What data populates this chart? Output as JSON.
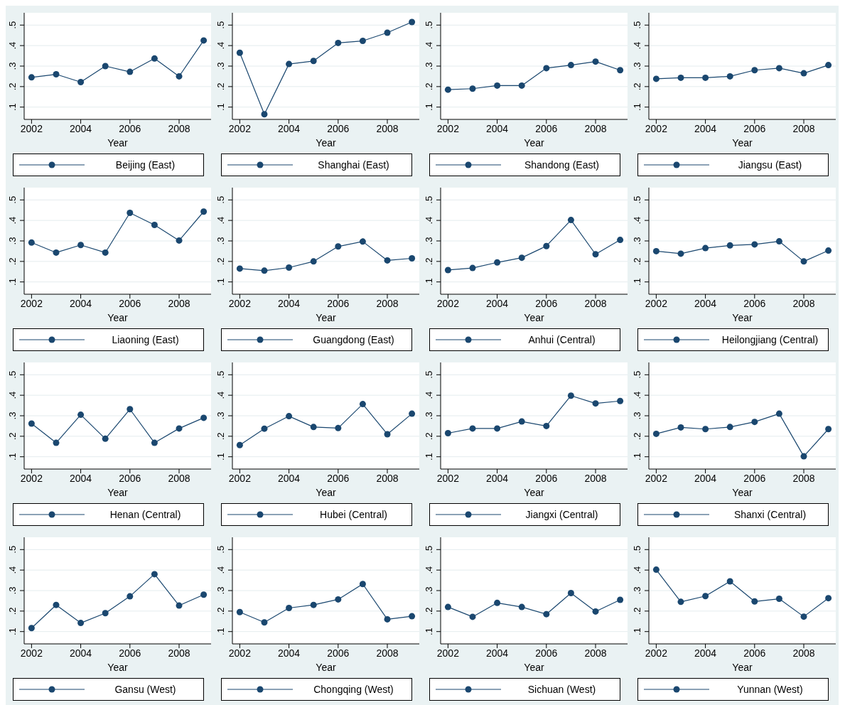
{
  "chart_data": [
    {
      "type": "line",
      "xlabel": "Year",
      "x": [
        2002,
        2003,
        2004,
        2005,
        2006,
        2007,
        2008,
        2009
      ],
      "xlim": [
        2001.7,
        2009.3
      ],
      "xticks": [
        2002,
        2004,
        2006,
        2008
      ],
      "ylim": [
        0.04,
        0.56
      ],
      "yticks": [
        {
          "value": 0.1,
          "label": ".1"
        },
        {
          "value": 0.2,
          "label": ".2"
        },
        {
          "value": 0.3,
          "label": ".3"
        },
        {
          "value": 0.4,
          "label": ".4"
        },
        {
          "value": 0.5,
          "label": ".5"
        }
      ],
      "grid": "y",
      "legend": "bottom",
      "marker": "circle",
      "series": [
        {
          "name": "Beijing (East)",
          "color": "#1a476f",
          "values": [
            0.245,
            0.26,
            0.222,
            0.3,
            0.272,
            0.337,
            0.25,
            0.425
          ]
        }
      ]
    },
    {
      "type": "line",
      "xlabel": "Year",
      "x": [
        2002,
        2003,
        2004,
        2005,
        2006,
        2007,
        2008,
        2009
      ],
      "xlim": [
        2001.7,
        2009.3
      ],
      "xticks": [
        2002,
        2004,
        2006,
        2008
      ],
      "ylim": [
        0.04,
        0.56
      ],
      "yticks": [
        {
          "value": 0.1,
          "label": ".1"
        },
        {
          "value": 0.2,
          "label": ".2"
        },
        {
          "value": 0.3,
          "label": ".3"
        },
        {
          "value": 0.4,
          "label": ".4"
        },
        {
          "value": 0.5,
          "label": ".5"
        }
      ],
      "grid": "y",
      "legend": "bottom",
      "marker": "circle",
      "series": [
        {
          "name": "Shanghai (East)",
          "color": "#1a476f",
          "values": [
            0.365,
            0.065,
            0.31,
            0.325,
            0.413,
            0.423,
            0.463,
            0.515
          ]
        }
      ]
    },
    {
      "type": "line",
      "xlabel": "Year",
      "x": [
        2002,
        2003,
        2004,
        2005,
        2006,
        2007,
        2008,
        2009
      ],
      "xlim": [
        2001.7,
        2009.3
      ],
      "xticks": [
        2002,
        2004,
        2006,
        2008
      ],
      "ylim": [
        0.04,
        0.56
      ],
      "yticks": [
        {
          "value": 0.1,
          "label": ".1"
        },
        {
          "value": 0.2,
          "label": ".2"
        },
        {
          "value": 0.3,
          "label": ".3"
        },
        {
          "value": 0.4,
          "label": ".4"
        },
        {
          "value": 0.5,
          "label": ".5"
        }
      ],
      "grid": "y",
      "legend": "bottom",
      "marker": "circle",
      "series": [
        {
          "name": "Shandong (East)",
          "color": "#1a476f",
          "values": [
            0.185,
            0.19,
            0.205,
            0.205,
            0.29,
            0.305,
            0.322,
            0.28
          ]
        }
      ]
    },
    {
      "type": "line",
      "xlabel": "Year",
      "x": [
        2002,
        2003,
        2004,
        2005,
        2006,
        2007,
        2008,
        2009
      ],
      "xlim": [
        2001.7,
        2009.3
      ],
      "xticks": [
        2002,
        2004,
        2006,
        2008
      ],
      "ylim": [
        0.04,
        0.56
      ],
      "yticks": [
        {
          "value": 0.1,
          "label": ".1"
        },
        {
          "value": 0.2,
          "label": ".2"
        },
        {
          "value": 0.3,
          "label": ".3"
        },
        {
          "value": 0.4,
          "label": ".4"
        },
        {
          "value": 0.5,
          "label": ".5"
        }
      ],
      "grid": "y",
      "legend": "bottom",
      "marker": "circle",
      "series": [
        {
          "name": "Jiangsu (East)",
          "color": "#1a476f",
          "values": [
            0.238,
            0.243,
            0.243,
            0.25,
            0.28,
            0.29,
            0.265,
            0.305
          ]
        }
      ]
    },
    {
      "type": "line",
      "xlabel": "Year",
      "x": [
        2002,
        2003,
        2004,
        2005,
        2006,
        2007,
        2008,
        2009
      ],
      "xlim": [
        2001.7,
        2009.3
      ],
      "xticks": [
        2002,
        2004,
        2006,
        2008
      ],
      "ylim": [
        0.04,
        0.56
      ],
      "yticks": [
        {
          "value": 0.1,
          "label": ".1"
        },
        {
          "value": 0.2,
          "label": ".2"
        },
        {
          "value": 0.3,
          "label": ".3"
        },
        {
          "value": 0.4,
          "label": ".4"
        },
        {
          "value": 0.5,
          "label": ".5"
        }
      ],
      "grid": "y",
      "legend": "bottom",
      "marker": "circle",
      "series": [
        {
          "name": "Liaoning (East)",
          "color": "#1a476f",
          "values": [
            0.292,
            0.243,
            0.28,
            0.243,
            0.437,
            0.378,
            0.302,
            0.443
          ]
        }
      ]
    },
    {
      "type": "line",
      "xlabel": "Year",
      "x": [
        2002,
        2003,
        2004,
        2005,
        2006,
        2007,
        2008,
        2009
      ],
      "xlim": [
        2001.7,
        2009.3
      ],
      "xticks": [
        2002,
        2004,
        2006,
        2008
      ],
      "ylim": [
        0.04,
        0.56
      ],
      "yticks": [
        {
          "value": 0.1,
          "label": ".1"
        },
        {
          "value": 0.2,
          "label": ".2"
        },
        {
          "value": 0.3,
          "label": ".3"
        },
        {
          "value": 0.4,
          "label": ".4"
        },
        {
          "value": 0.5,
          "label": ".5"
        }
      ],
      "grid": "y",
      "legend": "bottom",
      "marker": "circle",
      "series": [
        {
          "name": "Guangdong (East)",
          "color": "#1a476f",
          "values": [
            0.165,
            0.155,
            0.17,
            0.2,
            0.273,
            0.297,
            0.205,
            0.215
          ]
        }
      ]
    },
    {
      "type": "line",
      "xlabel": "Year",
      "x": [
        2002,
        2003,
        2004,
        2005,
        2006,
        2007,
        2008,
        2009
      ],
      "xlim": [
        2001.7,
        2009.3
      ],
      "xticks": [
        2002,
        2004,
        2006,
        2008
      ],
      "ylim": [
        0.04,
        0.56
      ],
      "yticks": [
        {
          "value": 0.1,
          "label": ".1"
        },
        {
          "value": 0.2,
          "label": ".2"
        },
        {
          "value": 0.3,
          "label": ".3"
        },
        {
          "value": 0.4,
          "label": ".4"
        },
        {
          "value": 0.5,
          "label": ".5"
        }
      ],
      "grid": "y",
      "legend": "bottom",
      "marker": "circle",
      "series": [
        {
          "name": "Anhui (Central)",
          "color": "#1a476f",
          "values": [
            0.158,
            0.168,
            0.195,
            0.218,
            0.275,
            0.402,
            0.235,
            0.305
          ]
        }
      ]
    },
    {
      "type": "line",
      "xlabel": "Year",
      "x": [
        2002,
        2003,
        2004,
        2005,
        2006,
        2007,
        2008,
        2009
      ],
      "xlim": [
        2001.7,
        2009.3
      ],
      "xticks": [
        2002,
        2004,
        2006,
        2008
      ],
      "ylim": [
        0.04,
        0.56
      ],
      "yticks": [
        {
          "value": 0.1,
          "label": ".1"
        },
        {
          "value": 0.2,
          "label": ".2"
        },
        {
          "value": 0.3,
          "label": ".3"
        },
        {
          "value": 0.4,
          "label": ".4"
        },
        {
          "value": 0.5,
          "label": ".5"
        }
      ],
      "grid": "y",
      "legend": "bottom",
      "marker": "circle",
      "series": [
        {
          "name": "Heilongjiang (Central)",
          "color": "#1a476f",
          "values": [
            0.25,
            0.238,
            0.265,
            0.278,
            0.283,
            0.298,
            0.2,
            0.253
          ]
        }
      ]
    },
    {
      "type": "line",
      "xlabel": "Year",
      "x": [
        2002,
        2003,
        2004,
        2005,
        2006,
        2007,
        2008,
        2009
      ],
      "xlim": [
        2001.7,
        2009.3
      ],
      "xticks": [
        2002,
        2004,
        2006,
        2008
      ],
      "ylim": [
        0.04,
        0.56
      ],
      "yticks": [
        {
          "value": 0.1,
          "label": ".1"
        },
        {
          "value": 0.2,
          "label": ".2"
        },
        {
          "value": 0.3,
          "label": ".3"
        },
        {
          "value": 0.4,
          "label": ".4"
        },
        {
          "value": 0.5,
          "label": ".5"
        }
      ],
      "grid": "y",
      "legend": "bottom",
      "marker": "circle",
      "series": [
        {
          "name": "Henan (Central)",
          "color": "#1a476f",
          "values": [
            0.262,
            0.168,
            0.305,
            0.188,
            0.332,
            0.168,
            0.238,
            0.29
          ]
        }
      ]
    },
    {
      "type": "line",
      "xlabel": "Year",
      "x": [
        2002,
        2003,
        2004,
        2005,
        2006,
        2007,
        2008,
        2009
      ],
      "xlim": [
        2001.7,
        2009.3
      ],
      "xticks": [
        2002,
        2004,
        2006,
        2008
      ],
      "ylim": [
        0.04,
        0.56
      ],
      "yticks": [
        {
          "value": 0.1,
          "label": ".1"
        },
        {
          "value": 0.2,
          "label": ".2"
        },
        {
          "value": 0.3,
          "label": ".3"
        },
        {
          "value": 0.4,
          "label": ".4"
        },
        {
          "value": 0.5,
          "label": ".5"
        }
      ],
      "grid": "y",
      "legend": "bottom",
      "marker": "circle",
      "series": [
        {
          "name": "Hubei (Central)",
          "color": "#1a476f",
          "values": [
            0.157,
            0.237,
            0.298,
            0.245,
            0.24,
            0.357,
            0.21,
            0.31
          ]
        }
      ]
    },
    {
      "type": "line",
      "xlabel": "Year",
      "x": [
        2002,
        2003,
        2004,
        2005,
        2006,
        2007,
        2008,
        2009
      ],
      "xlim": [
        2001.7,
        2009.3
      ],
      "xticks": [
        2002,
        2004,
        2006,
        2008
      ],
      "ylim": [
        0.04,
        0.56
      ],
      "yticks": [
        {
          "value": 0.1,
          "label": ".1"
        },
        {
          "value": 0.2,
          "label": ".2"
        },
        {
          "value": 0.3,
          "label": ".3"
        },
        {
          "value": 0.4,
          "label": ".4"
        },
        {
          "value": 0.5,
          "label": ".5"
        }
      ],
      "grid": "y",
      "legend": "bottom",
      "marker": "circle",
      "series": [
        {
          "name": "Jiangxi (Central)",
          "color": "#1a476f",
          "values": [
            0.215,
            0.238,
            0.238,
            0.272,
            0.25,
            0.398,
            0.36,
            0.372
          ]
        }
      ]
    },
    {
      "type": "line",
      "xlabel": "Year",
      "x": [
        2002,
        2003,
        2004,
        2005,
        2006,
        2007,
        2008,
        2009
      ],
      "xlim": [
        2001.7,
        2009.3
      ],
      "xticks": [
        2002,
        2004,
        2006,
        2008
      ],
      "ylim": [
        0.04,
        0.56
      ],
      "yticks": [
        {
          "value": 0.1,
          "label": ".1"
        },
        {
          "value": 0.2,
          "label": ".2"
        },
        {
          "value": 0.3,
          "label": ".3"
        },
        {
          "value": 0.4,
          "label": ".4"
        },
        {
          "value": 0.5,
          "label": ".5"
        }
      ],
      "grid": "y",
      "legend": "bottom",
      "marker": "circle",
      "series": [
        {
          "name": "Shanxi (Central)",
          "color": "#1a476f",
          "values": [
            0.212,
            0.243,
            0.235,
            0.245,
            0.27,
            0.31,
            0.102,
            0.235
          ]
        }
      ]
    },
    {
      "type": "line",
      "xlabel": "Year",
      "x": [
        2002,
        2003,
        2004,
        2005,
        2006,
        2007,
        2008,
        2009
      ],
      "xlim": [
        2001.7,
        2009.3
      ],
      "xticks": [
        2002,
        2004,
        2006,
        2008
      ],
      "ylim": [
        0.04,
        0.56
      ],
      "yticks": [
        {
          "value": 0.1,
          "label": ".1"
        },
        {
          "value": 0.2,
          "label": ".2"
        },
        {
          "value": 0.3,
          "label": ".3"
        },
        {
          "value": 0.4,
          "label": ".4"
        },
        {
          "value": 0.5,
          "label": ".5"
        }
      ],
      "grid": "y",
      "legend": "bottom",
      "marker": "circle",
      "series": [
        {
          "name": "Gansu (West)",
          "color": "#1a476f",
          "values": [
            0.117,
            0.23,
            0.142,
            0.19,
            0.272,
            0.38,
            0.227,
            0.28
          ]
        }
      ]
    },
    {
      "type": "line",
      "xlabel": "Year",
      "x": [
        2002,
        2003,
        2004,
        2005,
        2006,
        2007,
        2008,
        2009
      ],
      "xlim": [
        2001.7,
        2009.3
      ],
      "xticks": [
        2002,
        2004,
        2006,
        2008
      ],
      "ylim": [
        0.04,
        0.56
      ],
      "yticks": [
        {
          "value": 0.1,
          "label": ".1"
        },
        {
          "value": 0.2,
          "label": ".2"
        },
        {
          "value": 0.3,
          "label": ".3"
        },
        {
          "value": 0.4,
          "label": ".4"
        },
        {
          "value": 0.5,
          "label": ".5"
        }
      ],
      "grid": "y",
      "legend": "bottom",
      "marker": "circle",
      "series": [
        {
          "name": "Chongqing (West)",
          "color": "#1a476f",
          "values": [
            0.195,
            0.145,
            0.215,
            0.23,
            0.257,
            0.332,
            0.16,
            0.175
          ]
        }
      ]
    },
    {
      "type": "line",
      "xlabel": "Year",
      "x": [
        2002,
        2003,
        2004,
        2005,
        2006,
        2007,
        2008,
        2009
      ],
      "xlim": [
        2001.7,
        2009.3
      ],
      "xticks": [
        2002,
        2004,
        2006,
        2008
      ],
      "ylim": [
        0.04,
        0.56
      ],
      "yticks": [
        {
          "value": 0.1,
          "label": ".1"
        },
        {
          "value": 0.2,
          "label": ".2"
        },
        {
          "value": 0.3,
          "label": ".3"
        },
        {
          "value": 0.4,
          "label": ".4"
        },
        {
          "value": 0.5,
          "label": ".5"
        }
      ],
      "grid": "y",
      "legend": "bottom",
      "marker": "circle",
      "series": [
        {
          "name": "Sichuan (West)",
          "color": "#1a476f",
          "values": [
            0.22,
            0.172,
            0.24,
            0.22,
            0.185,
            0.288,
            0.198,
            0.255
          ]
        }
      ]
    },
    {
      "type": "line",
      "xlabel": "Year",
      "x": [
        2002,
        2003,
        2004,
        2005,
        2006,
        2007,
        2008,
        2009
      ],
      "xlim": [
        2001.7,
        2009.3
      ],
      "xticks": [
        2002,
        2004,
        2006,
        2008
      ],
      "ylim": [
        0.04,
        0.56
      ],
      "yticks": [
        {
          "value": 0.1,
          "label": ".1"
        },
        {
          "value": 0.2,
          "label": ".2"
        },
        {
          "value": 0.3,
          "label": ".3"
        },
        {
          "value": 0.4,
          "label": ".4"
        },
        {
          "value": 0.5,
          "label": ".5"
        }
      ],
      "grid": "y",
      "legend": "bottom",
      "marker": "circle",
      "series": [
        {
          "name": "Yunnan (West)",
          "color": "#1a476f",
          "values": [
            0.402,
            0.245,
            0.273,
            0.345,
            0.247,
            0.26,
            0.173,
            0.263
          ]
        }
      ]
    }
  ]
}
